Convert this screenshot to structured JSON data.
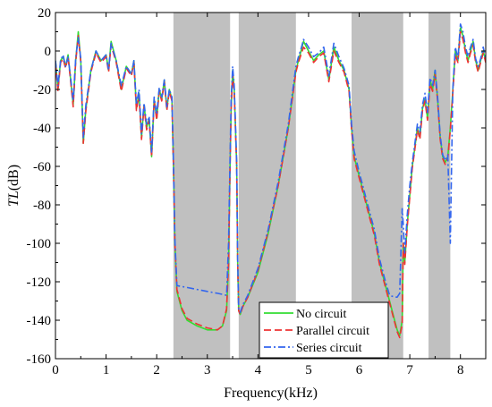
{
  "chart_data": {
    "type": "line",
    "xlabel": "Frequency(kHz)",
    "ylabel_italic": "TL",
    "ylabel_unit": "(dB)",
    "xlim": [
      0,
      8.5
    ],
    "ylim": [
      -160,
      20
    ],
    "xticks": [
      0,
      1,
      2,
      3,
      4,
      5,
      6,
      7,
      8
    ],
    "yticks": [
      20,
      0,
      -20,
      -40,
      -60,
      -80,
      -100,
      -120,
      -140,
      -160
    ],
    "grid": false,
    "legend_position": "bottom-right",
    "shaded_bands": [
      [
        2.33,
        3.45
      ],
      [
        3.62,
        4.75
      ],
      [
        5.85,
        6.87
      ],
      [
        7.37,
        7.8
      ]
    ],
    "shade_color": "#c0c0c0",
    "series": [
      {
        "name": "No circuit",
        "color": "#33dd33",
        "dash": "solid",
        "x": [
          0,
          0.05,
          0.1,
          0.15,
          0.2,
          0.25,
          0.3,
          0.35,
          0.4,
          0.45,
          0.5,
          0.55,
          0.6,
          0.7,
          0.8,
          0.9,
          1.0,
          1.05,
          1.1,
          1.2,
          1.3,
          1.4,
          1.5,
          1.55,
          1.6,
          1.65,
          1.7,
          1.75,
          1.8,
          1.85,
          1.9,
          1.95,
          2.0,
          2.05,
          2.1,
          2.15,
          2.2,
          2.25,
          2.3,
          2.33,
          2.36,
          2.4,
          2.5,
          2.6,
          2.8,
          3.0,
          3.2,
          3.3,
          3.38,
          3.42,
          3.45,
          3.47,
          3.5,
          3.53,
          3.55,
          3.58,
          3.6,
          3.62,
          3.65,
          3.7,
          3.8,
          4.0,
          4.2,
          4.4,
          4.6,
          4.75,
          4.8,
          4.85,
          4.9,
          5.0,
          5.1,
          5.2,
          5.3,
          5.4,
          5.5,
          5.6,
          5.7,
          5.8,
          5.85,
          5.9,
          6.0,
          6.1,
          6.2,
          6.3,
          6.4,
          6.5,
          6.6,
          6.7,
          6.75,
          6.8,
          6.85,
          6.87,
          6.9,
          6.95,
          7.0,
          7.05,
          7.1,
          7.15,
          7.2,
          7.25,
          7.3,
          7.35,
          7.4,
          7.45,
          7.5,
          7.55,
          7.6,
          7.65,
          7.7,
          7.75,
          7.8,
          7.85,
          7.9,
          7.95,
          8.0,
          8.05,
          8.1,
          8.15,
          8.2,
          8.25,
          8.3,
          8.35,
          8.4,
          8.45,
          8.5
        ],
        "y": [
          -5,
          -20,
          -5,
          -3,
          -8,
          -2,
          -15,
          -28,
          -5,
          10,
          -5,
          -48,
          -30,
          -10,
          0,
          -5,
          -2,
          -10,
          5,
          -5,
          -20,
          -8,
          -12,
          -5,
          -30,
          -22,
          -45,
          -28,
          -40,
          -35,
          -55,
          -25,
          -35,
          -20,
          -25,
          -15,
          -30,
          -20,
          -25,
          -60,
          -100,
          -125,
          -135,
          -140,
          -143,
          -145,
          -145,
          -143,
          -135,
          -110,
          -60,
          -30,
          -10,
          -20,
          -35,
          -60,
          -110,
          -135,
          -137,
          -133,
          -128,
          -115,
          -95,
          -70,
          -40,
          -10,
          -5,
          0,
          5,
          0,
          -5,
          -2,
          0,
          -15,
          2,
          -5,
          -10,
          -20,
          -40,
          -55,
          -65,
          -75,
          -85,
          -95,
          -110,
          -120,
          -130,
          -140,
          -145,
          -148,
          -140,
          -100,
          -110,
          -90,
          -75,
          -60,
          -50,
          -40,
          -45,
          -30,
          -25,
          -35,
          -15,
          -20,
          -10,
          -25,
          -45,
          -55,
          -58,
          -55,
          -40,
          -20,
          0,
          -5,
          12,
          8,
          0,
          -5,
          0,
          5,
          -5,
          -10,
          -5,
          0,
          -5
        ]
      },
      {
        "name": "Parallel circuit",
        "color": "#ee3333",
        "dash": "dashed",
        "x": [
          0,
          0.05,
          0.1,
          0.15,
          0.2,
          0.25,
          0.3,
          0.35,
          0.4,
          0.45,
          0.5,
          0.55,
          0.6,
          0.7,
          0.8,
          0.9,
          1.0,
          1.05,
          1.1,
          1.2,
          1.3,
          1.4,
          1.5,
          1.55,
          1.6,
          1.65,
          1.7,
          1.75,
          1.8,
          1.85,
          1.9,
          1.95,
          2.0,
          2.05,
          2.1,
          2.15,
          2.2,
          2.25,
          2.3,
          2.33,
          2.36,
          2.4,
          2.5,
          2.6,
          2.8,
          3.0,
          3.2,
          3.3,
          3.38,
          3.42,
          3.45,
          3.47,
          3.5,
          3.53,
          3.55,
          3.58,
          3.6,
          3.62,
          3.65,
          3.7,
          3.8,
          4.0,
          4.2,
          4.4,
          4.6,
          4.75,
          4.8,
          4.85,
          4.9,
          5.0,
          5.1,
          5.2,
          5.3,
          5.4,
          5.5,
          5.6,
          5.7,
          5.8,
          5.85,
          5.9,
          6.0,
          6.1,
          6.2,
          6.3,
          6.4,
          6.5,
          6.6,
          6.7,
          6.75,
          6.8,
          6.85,
          6.87,
          6.9,
          6.95,
          7.0,
          7.05,
          7.1,
          7.15,
          7.2,
          7.25,
          7.3,
          7.35,
          7.4,
          7.45,
          7.5,
          7.55,
          7.6,
          7.65,
          7.7,
          7.75,
          7.8,
          7.85,
          7.9,
          7.95,
          8.0,
          8.05,
          8.1,
          8.15,
          8.2,
          8.25,
          8.3,
          8.35,
          8.4,
          8.45,
          8.5
        ],
        "y": [
          -6,
          -21,
          -6,
          -4,
          -9,
          -3,
          -16,
          -29,
          -6,
          8,
          -6,
          -48,
          -31,
          -11,
          -1,
          -6,
          -3,
          -11,
          3,
          -6,
          -21,
          -9,
          -13,
          -6,
          -31,
          -23,
          -46,
          -29,
          -41,
          -36,
          -55,
          -26,
          -36,
          -21,
          -26,
          -16,
          -31,
          -21,
          -26,
          -60,
          -100,
          -124,
          -134,
          -139,
          -142,
          -144,
          -145,
          -143,
          -134,
          -110,
          -60,
          -30,
          -12,
          -22,
          -36,
          -60,
          -110,
          -135,
          -137,
          -133,
          -128,
          -114,
          -94,
          -70,
          -40,
          -11,
          -6,
          -2,
          2,
          -1,
          -6,
          -3,
          -1,
          -16,
          0,
          -6,
          -11,
          -21,
          -41,
          -56,
          -66,
          -76,
          -86,
          -96,
          -111,
          -121,
          -131,
          -141,
          -146,
          -149,
          -142,
          -100,
          -111,
          -91,
          -76,
          -61,
          -51,
          -41,
          -46,
          -31,
          -26,
          -36,
          -17,
          -21,
          -12,
          -26,
          -46,
          -56,
          -59,
          -56,
          -41,
          -22,
          -2,
          -6,
          10,
          6,
          -1,
          -6,
          -1,
          3,
          -6,
          -11,
          -6,
          -1,
          -6
        ]
      },
      {
        "name": "Series circuit",
        "color": "#3366ee",
        "dash": "dashdot",
        "x": [
          0,
          0.05,
          0.1,
          0.15,
          0.2,
          0.25,
          0.3,
          0.35,
          0.4,
          0.45,
          0.5,
          0.55,
          0.6,
          0.7,
          0.8,
          0.9,
          1.0,
          1.05,
          1.1,
          1.2,
          1.3,
          1.4,
          1.5,
          1.55,
          1.6,
          1.65,
          1.7,
          1.75,
          1.8,
          1.85,
          1.9,
          1.95,
          2.0,
          2.05,
          2.1,
          2.15,
          2.2,
          2.25,
          2.3,
          2.33,
          2.36,
          2.4,
          2.6,
          2.8,
          3.0,
          3.2,
          3.38,
          3.42,
          3.45,
          3.47,
          3.5,
          3.53,
          3.55,
          3.58,
          3.6,
          3.62,
          3.65,
          3.7,
          3.8,
          4.0,
          4.2,
          4.4,
          4.6,
          4.75,
          4.8,
          4.85,
          4.9,
          5.0,
          5.1,
          5.2,
          5.3,
          5.4,
          5.5,
          5.6,
          5.7,
          5.8,
          5.85,
          5.9,
          6.0,
          6.1,
          6.2,
          6.3,
          6.4,
          6.5,
          6.6,
          6.7,
          6.75,
          6.8,
          6.85,
          6.87,
          6.9,
          6.95,
          7.0,
          7.05,
          7.1,
          7.15,
          7.2,
          7.25,
          7.3,
          7.35,
          7.4,
          7.45,
          7.5,
          7.55,
          7.6,
          7.65,
          7.7,
          7.75,
          7.8,
          7.85,
          7.9,
          7.95,
          8.0,
          8.05,
          8.1,
          8.15,
          8.2,
          8.25,
          8.3,
          8.35,
          8.4,
          8.45,
          8.5
        ],
        "y": [
          -5,
          -18,
          -5,
          -2,
          -8,
          -3,
          -14,
          -26,
          -4,
          7,
          -4,
          -45,
          -28,
          -10,
          0,
          -5,
          -2,
          -10,
          4,
          -5,
          -18,
          -8,
          -12,
          -5,
          -28,
          -20,
          -43,
          -27,
          -38,
          -34,
          -53,
          -24,
          -33,
          -19,
          -24,
          -15,
          -29,
          -20,
          -24,
          -58,
          -98,
          -122,
          -123,
          -124,
          -125,
          -126,
          -127,
          -100,
          -55,
          -25,
          -8,
          -18,
          -33,
          -58,
          -108,
          -134,
          -136,
          -132,
          -127,
          -113,
          -93,
          -68,
          -38,
          -8,
          -3,
          1,
          6,
          2,
          -3,
          -1,
          2,
          -13,
          4,
          -3,
          -9,
          -18,
          -38,
          -52,
          -63,
          -73,
          -83,
          -93,
          -108,
          -118,
          -127,
          -128,
          -128,
          -126,
          -82,
          -90,
          -105,
          -85,
          -70,
          -58,
          -48,
          -38,
          -42,
          -28,
          -22,
          -32,
          -14,
          -18,
          -10,
          -24,
          -44,
          -54,
          -57,
          -54,
          -100,
          -20,
          2,
          -4,
          14,
          10,
          2,
          -3,
          2,
          6,
          -4,
          -8,
          -4,
          2,
          -4
        ]
      }
    ]
  }
}
